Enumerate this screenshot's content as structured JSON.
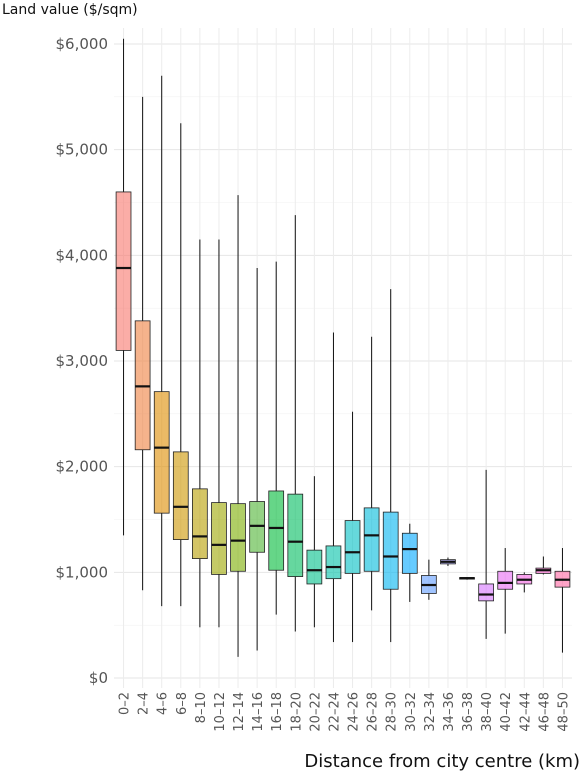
{
  "chart_data": {
    "type": "box",
    "xlabel": "Distance from city centre (km)",
    "ylabel": "Land value ($/sqm)",
    "ylim": [
      0,
      6000
    ],
    "yticks": [
      0,
      1000,
      2000,
      3000,
      4000,
      5000,
      6000
    ],
    "ytick_labels": [
      "$0",
      "$1,000",
      "$2,000",
      "$3,000",
      "$4,000",
      "$5,000",
      "$6,000"
    ],
    "grid": true,
    "categories": [
      "0–2",
      "2–4",
      "4–6",
      "6–8",
      "8–10",
      "10–12",
      "12–14",
      "14–16",
      "16–18",
      "18–20",
      "20–22",
      "22–24",
      "24–26",
      "26–28",
      "28–30",
      "30–32",
      "32–34",
      "34–36",
      "36–38",
      "38–40",
      "40–42",
      "42–44",
      "46–48",
      "48–50"
    ],
    "boxes": [
      {
        "min": 1350,
        "q1": 3100,
        "median": 3880,
        "q3": 4600,
        "max": 6050,
        "color": "#f8766d"
      },
      {
        "min": 830,
        "q1": 2160,
        "median": 2760,
        "q3": 3380,
        "max": 5500,
        "color": "#ee8040"
      },
      {
        "min": 680,
        "q1": 1560,
        "median": 2180,
        "q3": 2710,
        "max": 5700,
        "color": "#de8c00"
      },
      {
        "min": 680,
        "q1": 1310,
        "median": 1620,
        "q3": 2140,
        "max": 5250,
        "color": "#cd9600"
      },
      {
        "min": 480,
        "q1": 1130,
        "median": 1340,
        "q3": 1790,
        "max": 4150,
        "color": "#b79f00"
      },
      {
        "min": 480,
        "q1": 980,
        "median": 1260,
        "q3": 1660,
        "max": 4150,
        "color": "#9da700"
      },
      {
        "min": 200,
        "q1": 1010,
        "median": 1300,
        "q3": 1650,
        "max": 4570,
        "color": "#7cae00"
      },
      {
        "min": 260,
        "q1": 1190,
        "median": 1440,
        "q3": 1670,
        "max": 3880,
        "color": "#4fb433"
      },
      {
        "min": 600,
        "q1": 1020,
        "median": 1420,
        "q3": 1770,
        "max": 3940,
        "color": "#00ba38"
      },
      {
        "min": 440,
        "q1": 960,
        "median": 1290,
        "q3": 1740,
        "max": 4380,
        "color": "#00bd5f"
      },
      {
        "min": 480,
        "q1": 890,
        "median": 1020,
        "q3": 1210,
        "max": 1910,
        "color": "#00c08b"
      },
      {
        "min": 340,
        "q1": 940,
        "median": 1050,
        "q3": 1250,
        "max": 3270,
        "color": "#00c1a9"
      },
      {
        "min": 340,
        "q1": 990,
        "median": 1190,
        "q3": 1490,
        "max": 2520,
        "color": "#00bfc4"
      },
      {
        "min": 640,
        "q1": 1010,
        "median": 1350,
        "q3": 1610,
        "max": 3230,
        "color": "#00bbdb"
      },
      {
        "min": 340,
        "q1": 840,
        "median": 1150,
        "q3": 1570,
        "max": 3680,
        "color": "#00b4f0"
      },
      {
        "min": 720,
        "q1": 990,
        "median": 1220,
        "q3": 1370,
        "max": 1460,
        "color": "#00a9ff"
      },
      {
        "min": 740,
        "q1": 800,
        "median": 880,
        "q3": 970,
        "max": 1120,
        "color": "#619cff"
      },
      {
        "min": 1060,
        "q1": 1080,
        "median": 1100,
        "q3": 1120,
        "max": 1140,
        "color": "#9590ff"
      },
      {
        "min": 930,
        "q1": 940,
        "median": 945,
        "q3": 950,
        "max": 955,
        "color": "#b983ff"
      },
      {
        "min": 370,
        "q1": 730,
        "median": 790,
        "q3": 890,
        "max": 1970,
        "color": "#d575fe"
      },
      {
        "min": 420,
        "q1": 840,
        "median": 900,
        "q3": 1010,
        "max": 1230,
        "color": "#e76bf3"
      },
      {
        "min": 810,
        "q1": 890,
        "median": 930,
        "q3": 980,
        "max": 1000,
        "color": "#f564e3"
      },
      {
        "min": 980,
        "q1": 990,
        "median": 1020,
        "q3": 1040,
        "max": 1150,
        "color": "#fd61d1"
      },
      {
        "min": 240,
        "q1": 860,
        "median": 930,
        "q3": 1010,
        "max": 1230,
        "color": "#ff67a4"
      }
    ]
  }
}
